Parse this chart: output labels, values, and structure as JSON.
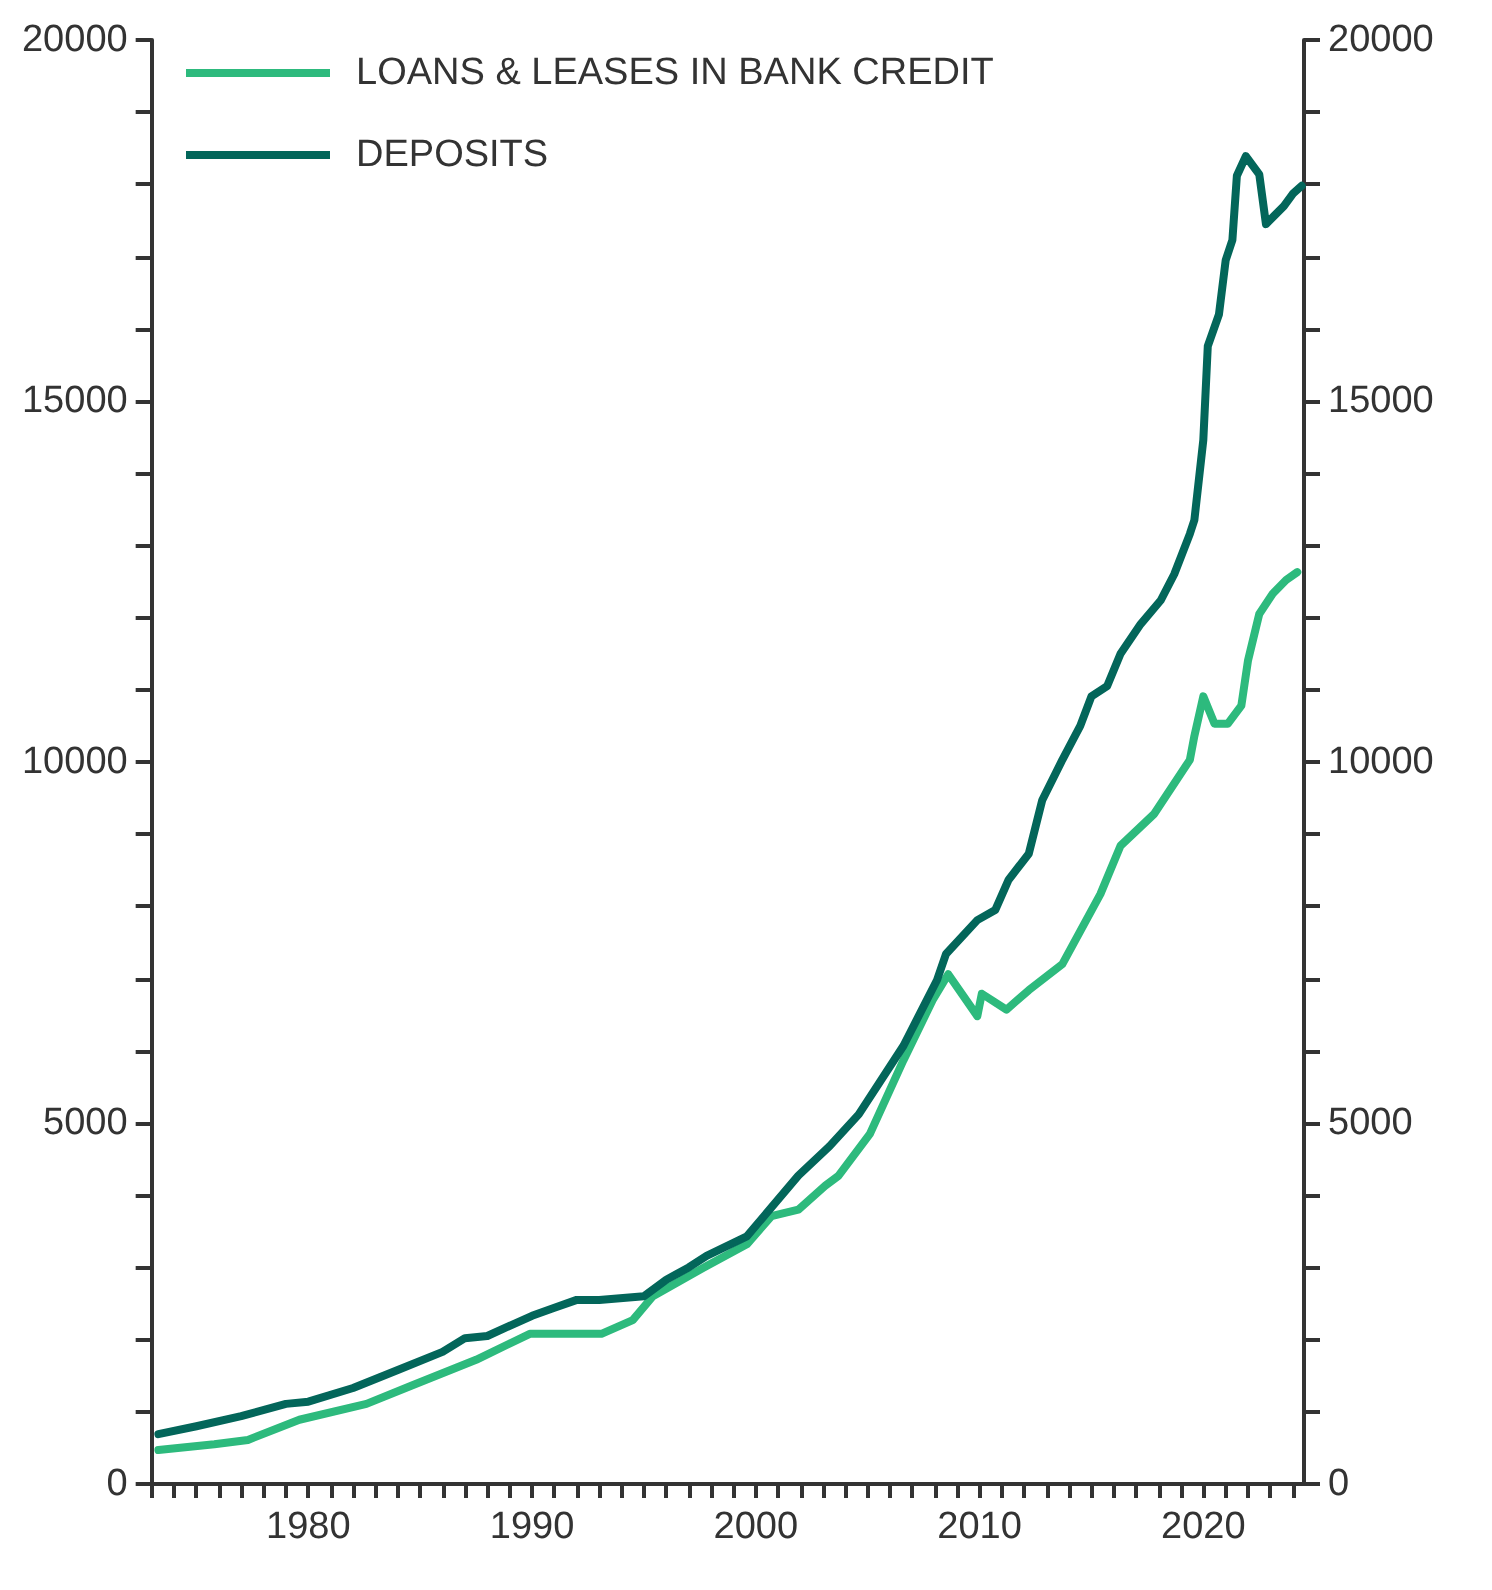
{
  "chart_data": {
    "type": "line",
    "xlim": [
      1973,
      2024.5
    ],
    "xticks": [
      {
        "value": 1973,
        "label": null
      },
      {
        "value": 1974,
        "label": null
      },
      {
        "value": 1975,
        "label": null
      },
      {
        "value": 1976,
        "label": null
      },
      {
        "value": 1977,
        "label": null
      },
      {
        "value": 1978,
        "label": null
      },
      {
        "value": 1979,
        "label": null
      },
      1980,
      {
        "value": 1981,
        "label": null
      },
      {
        "value": 1982,
        "label": null
      },
      {
        "value": 1983,
        "label": null
      },
      {
        "value": 1984,
        "label": null
      },
      {
        "value": 1985,
        "label": null
      },
      {
        "value": 1986,
        "label": null
      },
      {
        "value": 1987,
        "label": null
      },
      {
        "value": 1988,
        "label": null
      },
      {
        "value": 1989,
        "label": null
      },
      1990,
      {
        "value": 1991,
        "label": null
      },
      {
        "value": 1992,
        "label": null
      },
      {
        "value": 1993,
        "label": null
      },
      {
        "value": 1994,
        "label": null
      },
      {
        "value": 1995,
        "label": null
      },
      {
        "value": 1996,
        "label": null
      },
      {
        "value": 1997,
        "label": null
      },
      {
        "value": 1998,
        "label": null
      },
      {
        "value": 1999,
        "label": null
      },
      2000,
      {
        "value": 2001,
        "label": null
      },
      {
        "value": 2002,
        "label": null
      },
      {
        "value": 2003,
        "label": null
      },
      {
        "value": 2004,
        "label": null
      },
      {
        "value": 2005,
        "label": null
      },
      {
        "value": 2006,
        "label": null
      },
      {
        "value": 2007,
        "label": null
      },
      {
        "value": 2008,
        "label": null
      },
      {
        "value": 2009,
        "label": null
      },
      2010,
      {
        "value": 2011,
        "label": null
      },
      {
        "value": 2012,
        "label": null
      },
      {
        "value": 2013,
        "label": null
      },
      {
        "value": 2014,
        "label": null
      },
      {
        "value": 2015,
        "label": null
      },
      {
        "value": 2016,
        "label": null
      },
      {
        "value": 2017,
        "label": null
      },
      {
        "value": 2018,
        "label": null
      },
      {
        "value": 2019,
        "label": null
      },
      2020,
      {
        "value": 2021,
        "label": null
      },
      {
        "value": 2022,
        "label": null
      },
      {
        "value": 2023,
        "label": null
      },
      {
        "value": 2024,
        "label": null
      }
    ],
    "ylim": [
      0,
      20000
    ],
    "yticks": [
      0,
      {
        "value": 1000,
        "label": null
      },
      {
        "value": 2000,
        "label": null
      },
      {
        "value": 3000,
        "label": null
      },
      {
        "value": 4000,
        "label": null
      },
      5000,
      {
        "value": 6000,
        "label": null
      },
      {
        "value": 7000,
        "label": null
      },
      {
        "value": 8000,
        "label": null
      },
      {
        "value": 9000,
        "label": null
      },
      10000,
      {
        "value": 11000,
        "label": null
      },
      {
        "value": 12000,
        "label": null
      },
      {
        "value": 13000,
        "label": null
      },
      {
        "value": 14000,
        "label": null
      },
      15000,
      {
        "value": 16000,
        "label": null
      },
      {
        "value": 17000,
        "label": null
      },
      {
        "value": 18000,
        "label": null
      },
      {
        "value": 19000,
        "label": null
      },
      20000
    ],
    "y2lim": [
      0,
      20000
    ],
    "y2ticks": [
      0,
      {
        "value": 1000,
        "label": null
      },
      {
        "value": 2000,
        "label": null
      },
      {
        "value": 3000,
        "label": null
      },
      {
        "value": 4000,
        "label": null
      },
      5000,
      {
        "value": 6000,
        "label": null
      },
      {
        "value": 7000,
        "label": null
      },
      {
        "value": 8000,
        "label": null
      },
      {
        "value": 9000,
        "label": null
      },
      10000,
      {
        "value": 11000,
        "label": null
      },
      {
        "value": 12000,
        "label": null
      },
      {
        "value": 13000,
        "label": null
      },
      {
        "value": 14000,
        "label": null
      },
      15000,
      {
        "value": 16000,
        "label": null
      },
      {
        "value": 17000,
        "label": null
      },
      {
        "value": 18000,
        "label": null
      },
      {
        "value": 19000,
        "label": null
      },
      20000
    ],
    "grid": false,
    "legend": "top left",
    "marker": "none",
    "line_style": "solid",
    "series": [
      {
        "name": "LOANS & LEASES IN BANK CREDIT",
        "color": "#2dba7d",
        "x": [
          1973.3,
          1975.8,
          1977.3,
          1979.6,
          1982.6,
          1984.6,
          1987.5,
          1989.9,
          1993.1,
          1994.5,
          1995.4,
          1997.8,
          1999.6,
          2000.7,
          2001.9,
          2003.1,
          2003.7,
          2005.1,
          2006.6,
          2007.9,
          2008.6,
          2009.9,
          2010.1,
          2011.2,
          2012.2,
          2013.7,
          2015.4,
          2016.3,
          2017.8,
          2019.4,
          2019.6,
          2020.0,
          2020.5,
          2021.1,
          2021.7,
          2022.0,
          2022.5,
          2023.1,
          2023.7,
          2024.2
        ],
        "values": [
          470,
          550,
          610,
          890,
          1110,
          1360,
          1720,
          2080,
          2080,
          2270,
          2600,
          3020,
          3320,
          3710,
          3800,
          4130,
          4270,
          4850,
          5870,
          6700,
          7060,
          6480,
          6790,
          6570,
          6840,
          7200,
          8170,
          8840,
          9280,
          10030,
          10360,
          10910,
          10530,
          10530,
          10780,
          11410,
          12050,
          12330,
          12520,
          12630
        ]
      },
      {
        "name": "DEPOSITS",
        "color": "#03665a",
        "x": [
          1973.3,
          1975,
          1977,
          1979,
          1980,
          1982,
          1984,
          1986,
          1987,
          1988,
          1990,
          1991,
          1992,
          1993,
          1995,
          1996,
          1997,
          1997.8,
          1999.6,
          2001.9,
          2003.3,
          2004.6,
          2006.6,
          2008.1,
          2008.5,
          2009.9,
          2010.7,
          2011.3,
          2012.2,
          2012.8,
          2013.7,
          2014.5,
          2015.0,
          2015.7,
          2016.3,
          2017.2,
          2018.1,
          2018.7,
          2019.4,
          2019.6,
          2020.0,
          2020.2,
          2020.7,
          2021.0,
          2021.3,
          2021.5,
          2021.9,
          2022.5,
          2022.8,
          2023.6,
          2024.0,
          2024.4
        ],
        "values": [
          690,
          800,
          940,
          1110,
          1140,
          1330,
          1580,
          1830,
          2020,
          2050,
          2330,
          2440,
          2550,
          2550,
          2600,
          2830,
          3000,
          3160,
          3430,
          4270,
          4680,
          5120,
          6070,
          6980,
          7340,
          7810,
          7950,
          8370,
          8730,
          9470,
          10030,
          10500,
          10910,
          11050,
          11500,
          11910,
          12240,
          12600,
          13160,
          13350,
          14460,
          15760,
          16200,
          16950,
          17230,
          18120,
          18390,
          18140,
          17450,
          17700,
          17870,
          17980
        ]
      }
    ]
  }
}
